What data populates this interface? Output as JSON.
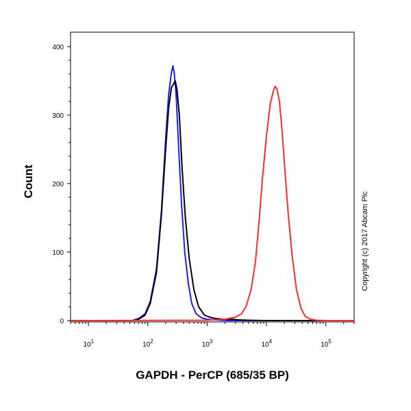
{
  "chart_data": {
    "type": "line",
    "title": "",
    "xlabel": "GAPDH - PerCP (685/35 BP)",
    "ylabel": "Count",
    "x_scale": "log",
    "xlim": [
      5,
      300000
    ],
    "ylim": [
      0,
      400
    ],
    "x_ticks": [
      {
        "value": 10,
        "base": "10",
        "exp": "1"
      },
      {
        "value": 100,
        "base": "10",
        "exp": "2"
      },
      {
        "value": 1000,
        "base": "10",
        "exp": "3"
      },
      {
        "value": 10000,
        "base": "10",
        "exp": "4"
      },
      {
        "value": 100000,
        "base": "10",
        "exp": "5"
      }
    ],
    "y_ticks": [
      0,
      100,
      200,
      300,
      400
    ],
    "grid": false,
    "legend": null,
    "annotation": "Copyright (c) 2017 Abcam Plc",
    "series": [
      {
        "color": "#1a1aff",
        "x": [
          5,
          55,
          70,
          90,
          110,
          140,
          170,
          200,
          225,
          250,
          265,
          280,
          300,
          330,
          370,
          420,
          480,
          550,
          650,
          800,
          1000,
          1300,
          1700,
          2200,
          3000,
          5000,
          10000,
          50000,
          300000
        ],
        "y": [
          0,
          0,
          3,
          10,
          28,
          75,
          160,
          265,
          330,
          362,
          372,
          360,
          330,
          255,
          170,
          100,
          55,
          25,
          10,
          4,
          2,
          1,
          0.5,
          0,
          0,
          0,
          0,
          0,
          0
        ]
      },
      {
        "color": "#000000",
        "x": [
          5,
          55,
          70,
          90,
          110,
          140,
          170,
          200,
          225,
          250,
          270,
          290,
          310,
          340,
          380,
          430,
          500,
          600,
          720,
          900,
          1100,
          1400,
          1800,
          2500,
          3500,
          5000,
          10000,
          50000,
          300000
        ],
        "y": [
          0,
          0,
          2,
          8,
          25,
          70,
          155,
          250,
          310,
          340,
          345,
          350,
          338,
          300,
          220,
          150,
          90,
          45,
          20,
          8,
          5,
          3,
          2,
          2,
          1,
          0.5,
          0,
          0,
          0
        ]
      },
      {
        "color": "#ff2a2a",
        "x": [
          5,
          1000,
          2000,
          3000,
          3800,
          4500,
          5500,
          6500,
          7500,
          8500,
          10000,
          11500,
          13000,
          14000,
          15000,
          16500,
          18000,
          20000,
          23000,
          27000,
          32000,
          38000,
          45000,
          55000,
          70000,
          100000,
          300000
        ],
        "y": [
          0,
          0.5,
          2,
          5,
          10,
          20,
          45,
          85,
          145,
          205,
          270,
          315,
          335,
          342,
          338,
          320,
          285,
          230,
          160,
          95,
          45,
          18,
          6,
          2,
          0.5,
          0,
          0
        ]
      }
    ]
  }
}
